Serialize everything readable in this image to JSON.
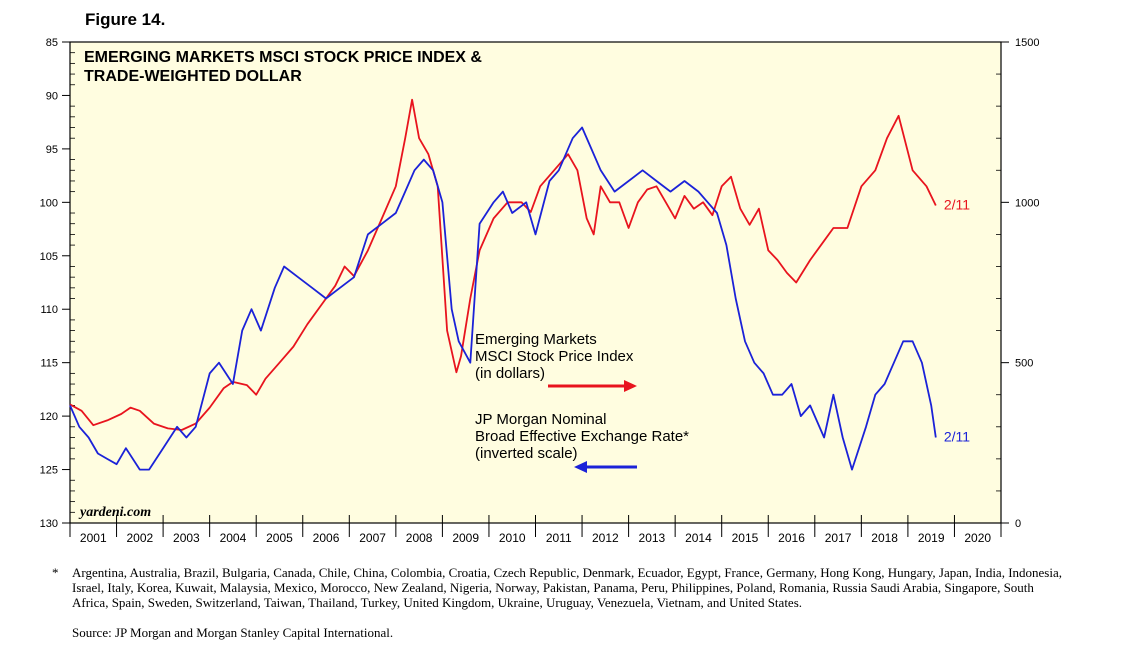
{
  "figure_label": "Figure 14.",
  "chart_data": {
    "type": "line",
    "title_lines": [
      "EMERGING MARKETS MSCI STOCK PRICE INDEX &",
      "TRADE-WEIGHTED DOLLAR"
    ],
    "watermark": "yardeni.com",
    "x_ticks": [
      "2001",
      "2002",
      "2003",
      "2004",
      "2005",
      "2006",
      "2007",
      "2008",
      "2009",
      "2010",
      "2011",
      "2012",
      "2013",
      "2014",
      "2015",
      "2016",
      "2017",
      "2018",
      "2019",
      "2020"
    ],
    "xlim": [
      2000.5,
      2020.5
    ],
    "y_left": {
      "ticks": [
        "85",
        "90",
        "95",
        "100",
        "105",
        "110",
        "115",
        "120",
        "125",
        "130"
      ],
      "ylim": [
        85,
        130
      ],
      "inverted": true
    },
    "y_right": {
      "ticks": [
        "0",
        "500",
        "1000",
        "1500"
      ],
      "ylim": [
        0,
        1500
      ]
    },
    "legend": {
      "msci": [
        "Emerging Markets",
        "MSCI Stock Price Index",
        "(in dollars)"
      ],
      "dollar": [
        "JP Morgan Nominal",
        "Broad Effective Exchange Rate*",
        "(inverted scale)"
      ]
    },
    "series": [
      {
        "name": "Emerging Markets MSCI Stock Price Index (in dollars)",
        "axis": "right",
        "color": "#e8141e",
        "end_label": "2/11",
        "x": [
          2000.5,
          2000.75,
          2001.0,
          2001.3,
          2001.6,
          2001.8,
          2002.0,
          2002.3,
          2002.6,
          2002.9,
          2003.2,
          2003.5,
          2003.8,
          2004.0,
          2004.3,
          2004.5,
          2004.7,
          2005.0,
          2005.3,
          2005.6,
          2005.9,
          2006.2,
          2006.4,
          2006.6,
          2006.9,
          2007.2,
          2007.5,
          2007.7,
          2007.85,
          2008.0,
          2008.2,
          2008.4,
          2008.6,
          2008.8,
          2008.9,
          2009.1,
          2009.3,
          2009.6,
          2009.9,
          2010.2,
          2010.4,
          2010.6,
          2010.9,
          2011.2,
          2011.4,
          2011.6,
          2011.75,
          2011.9,
          2012.1,
          2012.3,
          2012.5,
          2012.7,
          2012.9,
          2013.1,
          2013.3,
          2013.5,
          2013.7,
          2013.9,
          2014.1,
          2014.3,
          2014.5,
          2014.7,
          2014.9,
          2015.1,
          2015.3,
          2015.5,
          2015.7,
          2015.9,
          2016.1,
          2016.4,
          2016.7,
          2016.9,
          2017.2,
          2017.5,
          2017.8,
          2018.05,
          2018.3,
          2018.6,
          2018.9,
          2019.1
        ],
        "y": [
          370,
          350,
          305,
          320,
          340,
          360,
          350,
          310,
          295,
          290,
          310,
          360,
          420,
          440,
          430,
          400,
          450,
          500,
          550,
          620,
          680,
          740,
          800,
          770,
          850,
          950,
          1050,
          1200,
          1320,
          1200,
          1150,
          1050,
          600,
          470,
          520,
          700,
          850,
          950,
          1000,
          1000,
          970,
          1050,
          1100,
          1150,
          1100,
          950,
          900,
          1050,
          1000,
          1000,
          920,
          1000,
          1040,
          1050,
          1000,
          950,
          1020,
          980,
          1000,
          960,
          1050,
          1080,
          980,
          930,
          980,
          850,
          820,
          780,
          750,
          820,
          880,
          920,
          920,
          1050,
          1100,
          1200,
          1270,
          1100,
          1050,
          990
        ]
      },
      {
        "name": "JP Morgan Nominal Broad Effective Exchange Rate (inverted scale)",
        "axis": "left",
        "color": "#1b22d8",
        "end_label": "2/11",
        "x": [
          2000.5,
          2000.7,
          2000.9,
          2001.1,
          2001.3,
          2001.5,
          2001.7,
          2002.0,
          2002.2,
          2002.5,
          2002.8,
          2003.0,
          2003.2,
          2003.5,
          2003.7,
          2004.0,
          2004.2,
          2004.4,
          2004.6,
          2004.9,
          2005.1,
          2005.4,
          2005.7,
          2006.0,
          2006.3,
          2006.6,
          2006.9,
          2007.2,
          2007.5,
          2007.7,
          2007.9,
          2008.1,
          2008.3,
          2008.5,
          2008.7,
          2008.85,
          2009.1,
          2009.3,
          2009.6,
          2009.8,
          2010.0,
          2010.3,
          2010.5,
          2010.8,
          2011.0,
          2011.3,
          2011.5,
          2011.7,
          2011.9,
          2012.2,
          2012.5,
          2012.8,
          2013.1,
          2013.4,
          2013.7,
          2014.0,
          2014.2,
          2014.4,
          2014.6,
          2014.8,
          2015.0,
          2015.2,
          2015.4,
          2015.6,
          2015.8,
          2016.0,
          2016.2,
          2016.4,
          2016.7,
          2016.9,
          2017.1,
          2017.3,
          2017.6,
          2017.8,
          2018.0,
          2018.2,
          2018.4,
          2018.6,
          2018.8,
          2019.0,
          2019.1
        ],
        "y": [
          119,
          121,
          122,
          123.5,
          124,
          124.5,
          123,
          125,
          125,
          123,
          121,
          122,
          121,
          116,
          115,
          117,
          112,
          110,
          112,
          108,
          106,
          107,
          108,
          109,
          108,
          107,
          103,
          102,
          101,
          99,
          97,
          96,
          97,
          100,
          110,
          113,
          115,
          102,
          100,
          99,
          101,
          100,
          103,
          98,
          97,
          94,
          93,
          95,
          97,
          99,
          98,
          97,
          98,
          99,
          98,
          99,
          100,
          101,
          104,
          109,
          113,
          115,
          116,
          118,
          118,
          117,
          120,
          119,
          122,
          118,
          122,
          125,
          121,
          118,
          117,
          115,
          113,
          113,
          115,
          119,
          122
        ]
      }
    ]
  },
  "footnote": {
    "star": "*",
    "text": "Argentina, Australia, Brazil, Bulgaria, Canada, Chile, China, Colombia, Croatia, Czech Republic, Denmark, Ecuador, Egypt, France, Germany, Hong Kong, Hungary, Japan, India, Indonesia, Israel, Italy, Korea, Kuwait, Malaysia, Mexico, Morocco, New Zealand, Nigeria, Norway, Pakistan, Panama, Peru, Philippines, Poland, Romania, Russia Saudi Arabia, Singapore, South Africa, Spain, Sweden, Switzerland, Taiwan, Thailand, Turkey, United Kingdom, Ukraine, Uruguay, Venezuela, Vietnam, and United States.",
    "source": "Source: JP Morgan and Morgan Stanley Capital International."
  }
}
